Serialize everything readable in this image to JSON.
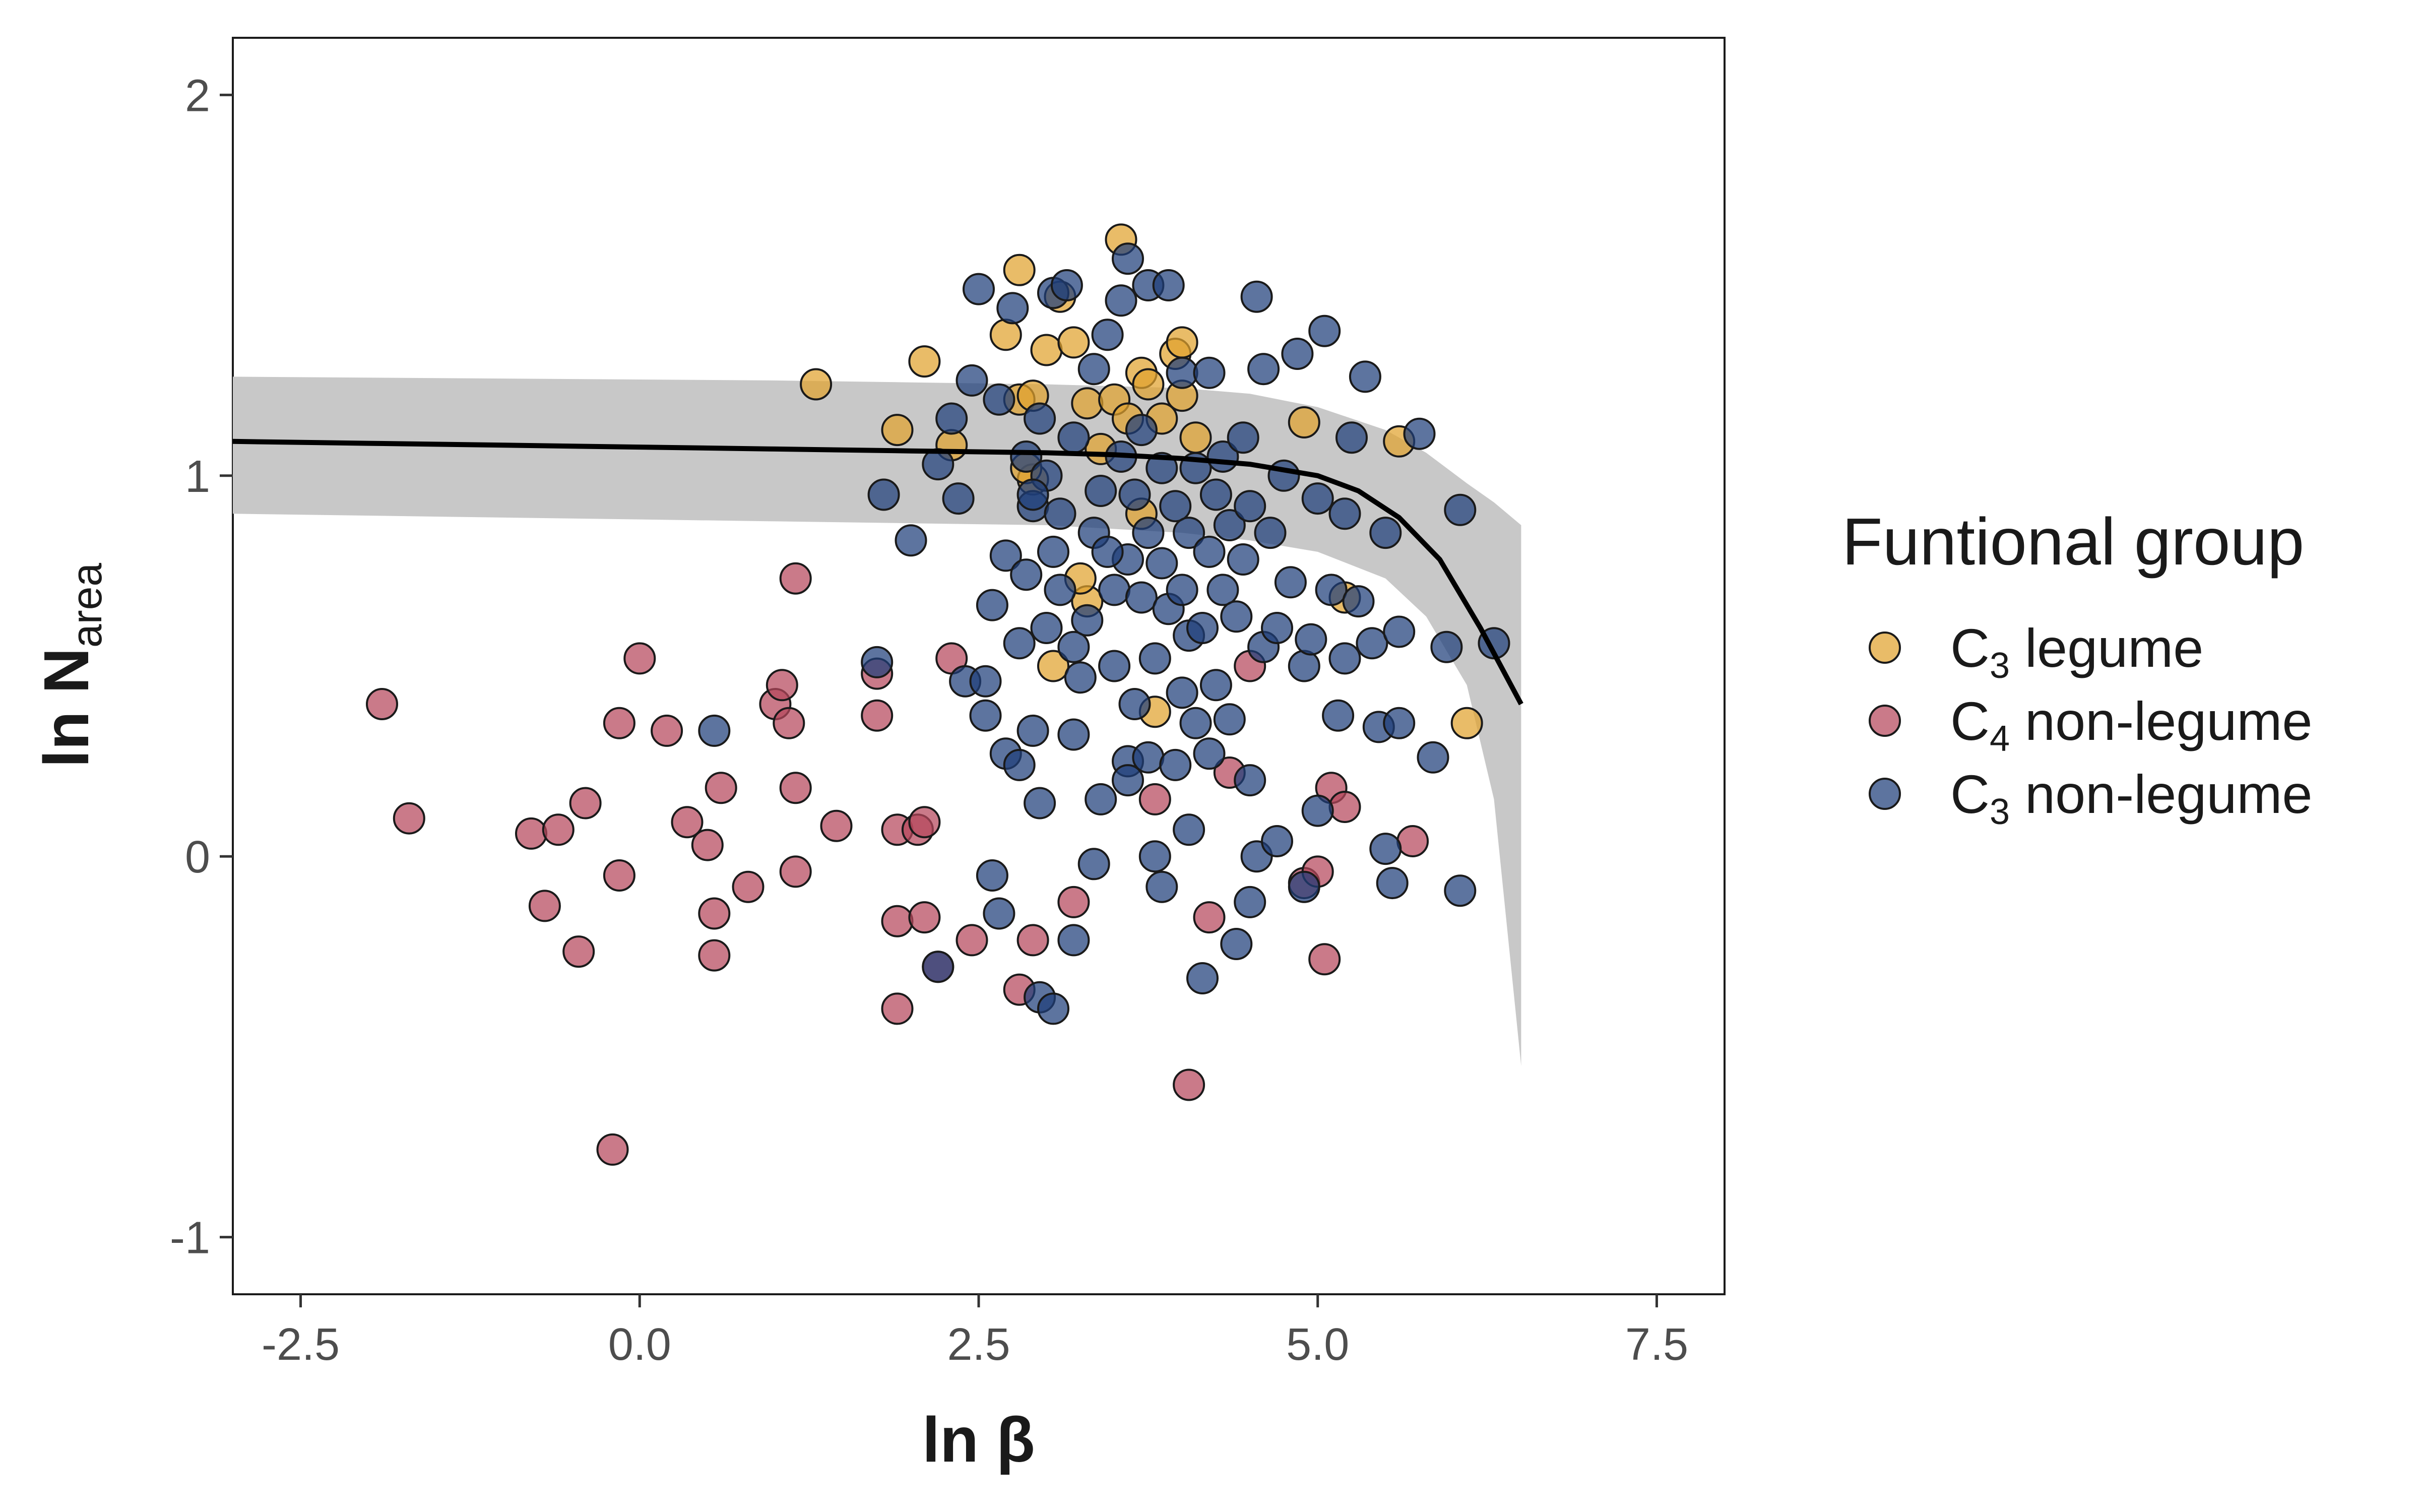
{
  "chart_data": {
    "type": "scatter",
    "title": "",
    "xlabel": "ln β",
    "ylabel": "ln N_area",
    "xlim": [
      -3.0,
      8.0
    ],
    "ylim": [
      -1.15,
      2.15
    ],
    "x_ticks": [
      -2.5,
      0.0,
      2.5,
      5.0,
      7.5
    ],
    "x_tick_labels": [
      "-2.5",
      "0.0",
      "2.5",
      "5.0",
      "7.5"
    ],
    "y_ticks": [
      -1,
      0,
      1,
      2
    ],
    "y_tick_labels": [
      "-1",
      "0",
      "1",
      "2"
    ],
    "grid": false,
    "legend": {
      "title": "Funtional group",
      "position": "right",
      "entries": [
        {
          "label": "C3 legume",
          "color": "#E0A22E"
        },
        {
          "label": "C4 non-legume",
          "color": "#B5465C"
        },
        {
          "label": "C3 non-legume",
          "color": "#1F3F7A"
        }
      ]
    },
    "fit_line": {
      "x": [
        -3.0,
        -2.0,
        -1.0,
        0.0,
        1.0,
        2.0,
        3.0,
        3.5,
        4.0,
        4.5,
        5.0,
        5.3,
        5.6,
        5.9,
        6.2,
        6.5
      ],
      "y": [
        1.09,
        1.085,
        1.08,
        1.075,
        1.07,
        1.065,
        1.06,
        1.055,
        1.045,
        1.03,
        1.0,
        0.96,
        0.89,
        0.78,
        0.6,
        0.4
      ]
    },
    "ribbon": {
      "x": [
        -3.0,
        -1.0,
        1.0,
        2.0,
        3.0,
        4.0,
        4.5,
        5.0,
        5.5,
        5.8,
        6.1,
        6.3,
        6.5
      ],
      "upper": [
        1.26,
        1.255,
        1.25,
        1.245,
        1.24,
        1.23,
        1.215,
        1.18,
        1.12,
        1.06,
        0.98,
        0.93,
        0.87
      ],
      "lower": [
        0.9,
        0.89,
        0.88,
        0.875,
        0.87,
        0.85,
        0.83,
        0.8,
        0.73,
        0.63,
        0.45,
        0.15,
        -0.55
      ]
    },
    "series": [
      {
        "name": "C3 legume",
        "color": "#E0A22E",
        "points": [
          [
            1.3,
            1.24
          ],
          [
            1.9,
            1.12
          ],
          [
            2.1,
            1.3
          ],
          [
            2.3,
            1.08
          ],
          [
            2.7,
            1.37
          ],
          [
            2.8,
            1.54
          ],
          [
            2.8,
            1.2
          ],
          [
            2.9,
            1.21
          ],
          [
            3.0,
            1.33
          ],
          [
            3.1,
            1.47
          ],
          [
            3.2,
            1.35
          ],
          [
            3.3,
            1.19
          ],
          [
            3.4,
            1.07
          ],
          [
            3.5,
            1.2
          ],
          [
            3.55,
            1.62
          ],
          [
            3.6,
            1.15
          ],
          [
            3.7,
            1.27
          ],
          [
            3.7,
            0.9
          ],
          [
            3.75,
            1.24
          ],
          [
            3.8,
            0.38
          ],
          [
            3.85,
            1.15
          ],
          [
            3.95,
            1.32
          ],
          [
            4.0,
            1.35
          ],
          [
            4.0,
            1.21
          ],
          [
            4.1,
            1.1
          ],
          [
            3.3,
            0.67
          ],
          [
            3.25,
            0.73
          ],
          [
            2.9,
            0.99
          ],
          [
            4.9,
            1.14
          ],
          [
            5.2,
            0.68
          ],
          [
            5.6,
            1.09
          ],
          [
            6.1,
            0.35
          ],
          [
            2.85,
            1.02
          ],
          [
            3.05,
            0.5
          ]
        ]
      },
      {
        "name": "C4 non-legume",
        "color": "#B5465C",
        "points": [
          [
            -1.9,
            0.4
          ],
          [
            -1.7,
            0.1
          ],
          [
            -0.8,
            0.06
          ],
          [
            -0.6,
            0.07
          ],
          [
            -0.7,
            -0.13
          ],
          [
            -0.4,
            0.14
          ],
          [
            -0.45,
            -0.25
          ],
          [
            -0.15,
            0.35
          ],
          [
            -0.15,
            -0.05
          ],
          [
            0.0,
            0.52
          ],
          [
            -0.2,
            -0.77
          ],
          [
            0.2,
            0.33
          ],
          [
            0.35,
            0.09
          ],
          [
            0.5,
            0.03
          ],
          [
            0.55,
            -0.15
          ],
          [
            0.6,
            0.18
          ],
          [
            0.55,
            -0.26
          ],
          [
            0.8,
            -0.08
          ],
          [
            1.0,
            0.4
          ],
          [
            1.05,
            0.45
          ],
          [
            1.1,
            0.35
          ],
          [
            1.15,
            0.73
          ],
          [
            1.15,
            0.18
          ],
          [
            1.15,
            -0.04
          ],
          [
            1.45,
            0.08
          ],
          [
            1.75,
            0.48
          ],
          [
            1.75,
            0.37
          ],
          [
            1.9,
            0.07
          ],
          [
            1.9,
            -0.17
          ],
          [
            1.9,
            -0.4
          ],
          [
            2.05,
            0.07
          ],
          [
            2.1,
            0.09
          ],
          [
            2.1,
            -0.16
          ],
          [
            2.2,
            -0.29
          ],
          [
            2.3,
            0.52
          ],
          [
            2.45,
            -0.22
          ],
          [
            2.8,
            -0.35
          ],
          [
            2.9,
            -0.22
          ],
          [
            3.2,
            -0.12
          ],
          [
            3.8,
            0.15
          ],
          [
            4.05,
            -0.6
          ],
          [
            4.2,
            -0.16
          ],
          [
            4.35,
            0.22
          ],
          [
            4.5,
            0.5
          ],
          [
            4.9,
            -0.07
          ],
          [
            5.0,
            -0.04
          ],
          [
            5.05,
            -0.27
          ],
          [
            5.1,
            0.18
          ],
          [
            5.2,
            0.13
          ],
          [
            5.7,
            0.04
          ]
        ]
      },
      {
        "name": "C3 non-legume",
        "color": "#1F3F7A",
        "points": [
          [
            0.55,
            0.33
          ],
          [
            1.75,
            0.51
          ],
          [
            1.8,
            0.95
          ],
          [
            2.0,
            0.83
          ],
          [
            2.2,
            1.03
          ],
          [
            2.3,
            1.15
          ],
          [
            2.35,
            0.94
          ],
          [
            2.4,
            0.46
          ],
          [
            2.45,
            1.25
          ],
          [
            2.5,
            1.49
          ],
          [
            2.55,
            0.37
          ],
          [
            2.55,
            0.46
          ],
          [
            2.6,
            0.66
          ],
          [
            2.65,
            1.2
          ],
          [
            2.7,
            0.27
          ],
          [
            2.7,
            0.79
          ],
          [
            2.75,
            1.44
          ],
          [
            2.8,
            0.24
          ],
          [
            2.8,
            0.56
          ],
          [
            2.85,
            0.74
          ],
          [
            2.85,
            1.05
          ],
          [
            2.9,
            0.33
          ],
          [
            2.9,
            0.92
          ],
          [
            2.95,
            0.14
          ],
          [
            2.95,
            1.15
          ],
          [
            3.0,
            0.6
          ],
          [
            3.0,
            1.0
          ],
          [
            3.05,
            0.8
          ],
          [
            3.05,
            1.48
          ],
          [
            3.1,
            0.7
          ],
          [
            3.1,
            0.9
          ],
          [
            3.15,
            1.5
          ],
          [
            3.2,
            0.55
          ],
          [
            3.2,
            0.32
          ],
          [
            3.2,
            1.1
          ],
          [
            3.25,
            0.47
          ],
          [
            3.3,
            0.62
          ],
          [
            3.35,
            0.85
          ],
          [
            3.35,
            1.28
          ],
          [
            3.4,
            0.15
          ],
          [
            3.4,
            0.96
          ],
          [
            3.45,
            1.37
          ],
          [
            3.5,
            0.5
          ],
          [
            3.5,
            0.7
          ],
          [
            3.55,
            1.05
          ],
          [
            3.55,
            1.46
          ],
          [
            3.6,
            0.25
          ],
          [
            3.6,
            0.78
          ],
          [
            3.6,
            1.57
          ],
          [
            3.65,
            0.4
          ],
          [
            3.65,
            0.95
          ],
          [
            3.7,
            0.68
          ],
          [
            3.7,
            1.12
          ],
          [
            3.75,
            0.26
          ],
          [
            3.75,
            0.85
          ],
          [
            3.75,
            1.5
          ],
          [
            3.8,
            0.52
          ],
          [
            3.8,
            0.0
          ],
          [
            3.85,
            0.77
          ],
          [
            3.85,
            1.02
          ],
          [
            3.9,
            0.65
          ],
          [
            3.9,
            1.5
          ],
          [
            3.95,
            0.24
          ],
          [
            3.95,
            0.92
          ],
          [
            4.0,
            0.43
          ],
          [
            4.0,
            0.7
          ],
          [
            4.0,
            1.27
          ],
          [
            4.05,
            0.07
          ],
          [
            4.05,
            0.58
          ],
          [
            4.05,
            0.85
          ],
          [
            4.1,
            0.35
          ],
          [
            4.1,
            1.02
          ],
          [
            4.15,
            0.6
          ],
          [
            4.15,
            -0.32
          ],
          [
            4.2,
            0.27
          ],
          [
            4.2,
            0.8
          ],
          [
            4.2,
            1.27
          ],
          [
            4.25,
            0.45
          ],
          [
            4.25,
            0.95
          ],
          [
            4.3,
            0.7
          ],
          [
            4.3,
            1.05
          ],
          [
            4.35,
            0.36
          ],
          [
            4.35,
            0.87
          ],
          [
            4.4,
            0.63
          ],
          [
            4.4,
            -0.23
          ],
          [
            4.45,
            0.78
          ],
          [
            4.45,
            1.1
          ],
          [
            4.5,
            0.2
          ],
          [
            4.5,
            0.92
          ],
          [
            4.55,
            0.0
          ],
          [
            4.55,
            1.47
          ],
          [
            4.6,
            0.55
          ],
          [
            4.6,
            1.28
          ],
          [
            4.65,
            0.85
          ],
          [
            4.7,
            0.04
          ],
          [
            4.7,
            0.6
          ],
          [
            4.75,
            1.0
          ],
          [
            4.8,
            0.72
          ],
          [
            4.85,
            1.32
          ],
          [
            4.9,
            0.5
          ],
          [
            4.9,
            -0.08
          ],
          [
            4.95,
            0.57
          ],
          [
            5.0,
            0.12
          ],
          [
            5.0,
            0.94
          ],
          [
            5.05,
            1.38
          ],
          [
            5.1,
            0.7
          ],
          [
            5.15,
            0.37
          ],
          [
            5.2,
            0.52
          ],
          [
            5.2,
            0.9
          ],
          [
            5.25,
            1.1
          ],
          [
            5.3,
            0.67
          ],
          [
            5.35,
            1.26
          ],
          [
            5.4,
            0.56
          ],
          [
            5.45,
            0.34
          ],
          [
            5.5,
            0.02
          ],
          [
            5.5,
            0.85
          ],
          [
            5.55,
            -0.07
          ],
          [
            5.6,
            0.59
          ],
          [
            5.6,
            0.35
          ],
          [
            5.75,
            1.11
          ],
          [
            5.85,
            0.26
          ],
          [
            5.95,
            0.55
          ],
          [
            6.05,
            0.91
          ],
          [
            6.05,
            -0.09
          ],
          [
            6.3,
            0.56
          ],
          [
            3.35,
            -0.02
          ],
          [
            3.45,
            0.8
          ],
          [
            2.6,
            -0.05
          ],
          [
            2.65,
            -0.15
          ],
          [
            2.95,
            -0.37
          ],
          [
            3.05,
            -0.4
          ],
          [
            3.2,
            -0.22
          ],
          [
            2.2,
            -0.29
          ],
          [
            3.85,
            -0.08
          ],
          [
            4.5,
            -0.12
          ],
          [
            3.6,
            0.2
          ],
          [
            2.9,
            0.95
          ]
        ]
      }
    ]
  }
}
